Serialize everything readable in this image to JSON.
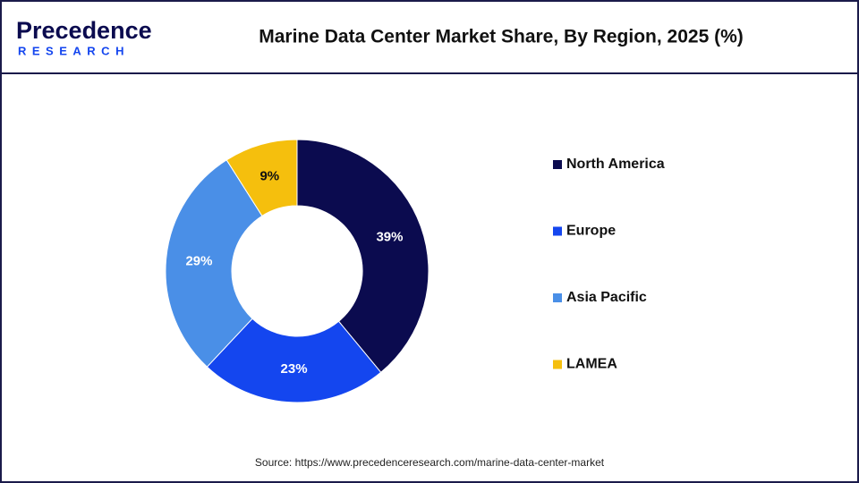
{
  "logo": {
    "name": "Precedence",
    "sub": "RESEARCH"
  },
  "chart_data": {
    "type": "donut",
    "title": "Marine Data Center Market Share, By Region, 2025 (%)",
    "categories": [
      "North America",
      "Europe",
      "Asia Pacific",
      "LAMEA"
    ],
    "values": [
      39,
      23,
      29,
      9
    ],
    "value_labels": [
      "39%",
      "23%",
      "29%",
      "9%"
    ],
    "colors": [
      "#0b0b4f",
      "#1446ef",
      "#4a8fe7",
      "#f5bf0d"
    ],
    "legend": "right",
    "source": "Source: https://www.precedenceresearch.com/marine-data-center-market"
  }
}
